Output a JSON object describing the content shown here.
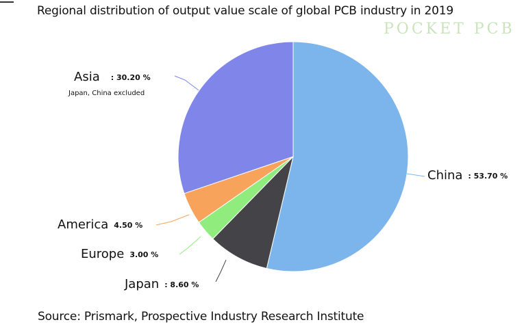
{
  "watermark": "POCKET PCB",
  "chart_data": {
    "type": "pie",
    "title": "Regional distribution of output value scale of global PCB industry in 2019",
    "source": "Source: Prismark, Prospective Industry Research Institute",
    "slices": [
      {
        "label": "China",
        "value": 53.7,
        "display": ": 53.70 %",
        "color": "#7cb5ec"
      },
      {
        "label": "Japan",
        "value": 8.6,
        "display": ": 8.60 %",
        "color": "#434348"
      },
      {
        "label": "Europe",
        "value": 3.0,
        "display": "3.00 %",
        "color": "#90ed7d"
      },
      {
        "label": "America",
        "value": 4.5,
        "display": "4.50 %",
        "color": "#f7a35c"
      },
      {
        "label": "Asia",
        "value": 30.2,
        "display": ": 30.20 %",
        "color": "#8085e9",
        "note": "Japan, China excluded"
      }
    ],
    "start": "top",
    "direction": "clockwise",
    "legend": "none"
  }
}
